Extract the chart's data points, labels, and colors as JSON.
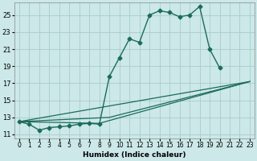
{
  "title": "",
  "xlabel": "Humidex (Indice chaleur)",
  "background_color": "#cce8e8",
  "grid_color": "#aacccc",
  "line_color": "#1a6b5a",
  "xlim": [
    -0.5,
    23.5
  ],
  "ylim": [
    10.5,
    26.5
  ],
  "xticks": [
    0,
    1,
    2,
    3,
    4,
    5,
    6,
    7,
    8,
    9,
    10,
    11,
    12,
    13,
    14,
    15,
    16,
    17,
    18,
    19,
    20,
    21,
    22,
    23
  ],
  "yticks": [
    11,
    13,
    15,
    17,
    19,
    21,
    23,
    25
  ],
  "curve1_x": [
    0,
    1,
    2,
    3,
    4,
    5,
    6,
    7,
    8,
    9,
    10,
    11,
    12,
    13,
    14,
    15,
    16,
    17,
    18,
    19,
    20
  ],
  "curve1_y": [
    12.5,
    12.2,
    11.5,
    11.8,
    11.9,
    12.0,
    12.2,
    12.3,
    12.2,
    17.8,
    20.0,
    22.2,
    21.8,
    25.0,
    25.5,
    25.3,
    24.8,
    25.0,
    26.0,
    21.0,
    18.8
  ],
  "line2_x": [
    0,
    23
  ],
  "line2_y": [
    12.5,
    17.2
  ],
  "line3_x": [
    0,
    9,
    23
  ],
  "line3_y": [
    12.5,
    13.0,
    17.2
  ],
  "line4_x": [
    0,
    8,
    23
  ],
  "line4_y": [
    12.5,
    12.3,
    17.2
  ]
}
